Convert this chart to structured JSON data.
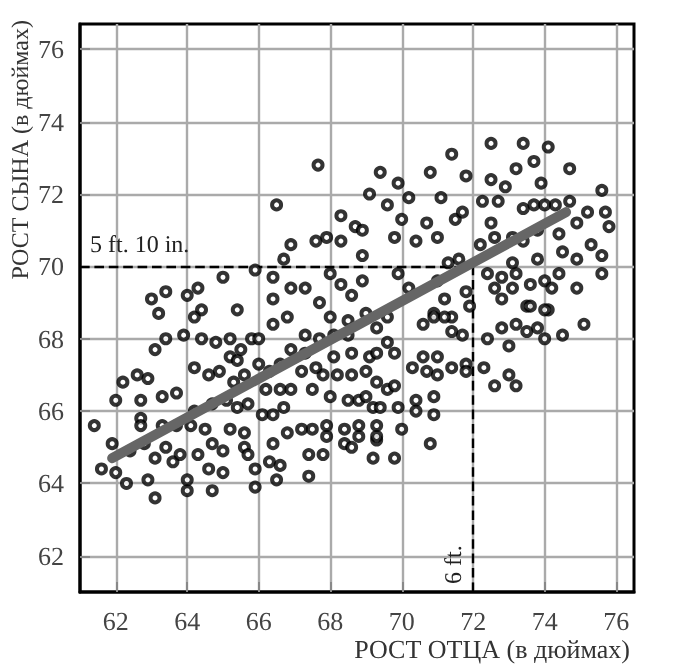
{
  "chart_data": {
    "type": "scatter",
    "xlabel": "РОСТ ОТЦА (в дюймах)",
    "ylabel": "РОСТ СЫНА (в дюймах)",
    "xlim": [
      61,
      76.5
    ],
    "ylim": [
      61,
      76.7
    ],
    "xticks": [
      62,
      64,
      66,
      68,
      70,
      72,
      74,
      76
    ],
    "yticks": [
      62,
      64,
      66,
      68,
      70,
      72,
      74,
      76
    ],
    "grid": true,
    "marker": "circle",
    "ref_lines": [
      {
        "axis": "y",
        "value": 70,
        "label": "5 ft. 10 in.",
        "color": "#000000",
        "line_style": "dashed"
      },
      {
        "axis": "x",
        "value": 72,
        "label": "6 ft.",
        "color": "#000000",
        "line_style": "dashed"
      }
    ],
    "series": [
      {
        "color": "#000000",
        "x": [
          67.66,
          69.1,
          66.5,
          68.3,
          68.7,
          68.9,
          66.9,
          67.6,
          67.9,
          68.3,
          68.9,
          66.7,
          65.0,
          63.0,
          63.4,
          63.2,
          64.0,
          64.3,
          64.4,
          65.9,
          66.4,
          66.4,
          66.9,
          71.4,
          72.5,
          73.4,
          74.1,
          73.7,
          73.2,
          74.7,
          70.8,
          71.8,
          69.4,
          69.9,
          72.5,
          73.9,
          72.9,
          71.1,
          69.6,
          70.2,
          72.26,
          72.7,
          73.4,
          73.7,
          74.0,
          74.3,
          74.7,
          75.6,
          75.7,
          75.8,
          75.2,
          74.9,
          70.7,
          71.5,
          71.7,
          70.0,
          69.8,
          70.4,
          71.0,
          72.5,
          72.6,
          73.1,
          73.4,
          73.8,
          74.4,
          75.3,
          74.9,
          75.6,
          75.6,
          74.5,
          73.8,
          73.1,
          72.4,
          72.8,
          73.2,
          72.6,
          73.1,
          73.6,
          74.0,
          74.2,
          74.4,
          74.9,
          73.5,
          74.1,
          72.8,
          71.8,
          71.2,
          70.9,
          71.4,
          69.9,
          70.2,
          71.0,
          71.6,
          71.3,
          72.2,
          64.2,
          65.4,
          63.1,
          63.4,
          63.9,
          64.4,
          62.2,
          62.6,
          62.9,
          62.0,
          62.7,
          63.3,
          63.7,
          61.4,
          62.7,
          62.7,
          63.3,
          63.7,
          64.2,
          64.1,
          61.9,
          62.4,
          62.8,
          63.4,
          63.1,
          63.6,
          61.6,
          62.0,
          62.3,
          62.9,
          63.1,
          63.8,
          64.3,
          64.0,
          64.0,
          64.6,
          64.7,
          65.0,
          64.5,
          64.7,
          65.0,
          65.1,
          64.7,
          64.2,
          64.6,
          64.9,
          64.8,
          65.2,
          65.5,
          65.8,
          65.2,
          65.4,
          65.3,
          65.6,
          65.4,
          65.7,
          65.2,
          65.6,
          65.6,
          65.7,
          65.9,
          65.9,
          66.3,
          66.6,
          66.5,
          66.4,
          66.8,
          67.2,
          66.1,
          66.4,
          66.7,
          66.2,
          66.6,
          66.9,
          66.0,
          66.3,
          66.6,
          66.9,
          67.3,
          67.3,
          66.0,
          66.4,
          66.8,
          67.4,
          67.4,
          67.8,
          67.5,
          67.9,
          68.4,
          68.0,
          68.5,
          67.9,
          68.4,
          68.8,
          68.8,
          68.6,
          69.2,
          69.3,
          69.3,
          69.2,
          67.5,
          67.8,
          67.2,
          67.6,
          68.2,
          68.6,
          69.0,
          68.1,
          68.6,
          69.1,
          67.7,
          68.1,
          68.5,
          68.0,
          68.5,
          69.0,
          68.8,
          69.0,
          69.3,
          69.6,
          70.6,
          70.9,
          71.2,
          71.7,
          71.4,
          72.4,
          72.8,
          73.2,
          73.5,
          73.8,
          74.0,
          74.5,
          75.1,
          73.0,
          73.6,
          74.0,
          71.9,
          69.3,
          69.6,
          69.8,
          70.6,
          71.0,
          70.3,
          70.7,
          71.0,
          71.4,
          71.8,
          71.8,
          72.3,
          72.6,
          73.0,
          73.2,
          69.3,
          69.6,
          69.8,
          69.4,
          69.9,
          70.4,
          70.4,
          70.9,
          70.9,
          70.0,
          69.3,
          70.8,
          69.8,
          68.3,
          68.6,
          68.9,
          67.7,
          67.3,
          68.0
        ],
        "values": [
          72.8,
          72.0,
          71.7,
          71.4,
          71.1,
          71.0,
          70.6,
          70.7,
          70.8,
          70.7,
          70.3,
          70.2,
          69.7,
          69.1,
          69.3,
          68.7,
          69.2,
          69.4,
          68.8,
          69.9,
          69.7,
          69.1,
          69.4,
          73.1,
          73.4,
          73.4,
          73.3,
          72.9,
          72.7,
          72.7,
          72.6,
          72.5,
          72.6,
          72.3,
          72.4,
          72.3,
          72.2,
          71.9,
          71.7,
          71.9,
          71.8,
          71.8,
          71.6,
          71.7,
          71.7,
          71.7,
          71.8,
          72.1,
          71.5,
          71.1,
          71.5,
          71.2,
          71.2,
          71.3,
          71.5,
          71.3,
          70.8,
          70.7,
          70.8,
          71.2,
          70.8,
          70.8,
          70.7,
          71.0,
          70.9,
          70.6,
          70.2,
          70.3,
          69.8,
          70.4,
          70.2,
          70.1,
          69.8,
          69.7,
          69.8,
          69.4,
          69.4,
          69.5,
          69.6,
          69.4,
          69.8,
          69.4,
          68.9,
          68.8,
          69.1,
          69.3,
          69.1,
          68.7,
          68.6,
          69.8,
          69.4,
          69.6,
          70.2,
          70.1,
          70.6,
          68.6,
          68.8,
          67.7,
          68.0,
          68.1,
          68.0,
          66.8,
          67.0,
          66.9,
          66.3,
          66.3,
          66.4,
          66.5,
          65.6,
          65.8,
          65.6,
          65.6,
          65.6,
          66.0,
          65.6,
          65.1,
          64.9,
          65.1,
          65.0,
          64.7,
          64.6,
          64.4,
          64.3,
          64.0,
          64.1,
          63.6,
          64.8,
          64.8,
          64.1,
          63.8,
          64.4,
          63.8,
          64.3,
          65.5,
          65.1,
          64.9,
          66.3,
          66.2,
          67.2,
          67.0,
          67.1,
          67.9,
          68.0,
          67.7,
          68.0,
          67.5,
          67.4,
          66.8,
          67.0,
          66.1,
          66.2,
          65.5,
          65.4,
          65.0,
          64.8,
          64.4,
          63.9,
          64.6,
          64.5,
          64.1,
          65.1,
          65.4,
          65.5,
          65.9,
          65.9,
          66.1,
          66.6,
          66.6,
          66.6,
          67.3,
          67.1,
          67.3,
          67.7,
          67.6,
          68.1,
          68.0,
          68.4,
          68.6,
          64.2,
          64.8,
          64.8,
          65.5,
          65.6,
          65.5,
          66.4,
          66.3,
          65.3,
          65.1,
          65.6,
          65.3,
          65.0,
          64.7,
          65.2,
          65.6,
          66.1,
          66.6,
          67.0,
          67.1,
          67.2,
          67.0,
          67.0,
          67.1,
          67.5,
          67.6,
          67.5,
          68.0,
          68.1,
          68.1,
          68.6,
          68.5,
          68.7,
          66.3,
          66.4,
          68.3,
          68.6,
          68.4,
          68.6,
          68.6,
          68.1,
          68.2,
          68.0,
          68.3,
          68.4,
          68.2,
          68.3,
          68.0,
          68.1,
          68.4,
          67.8,
          68.9,
          68.8,
          68.9,
          67.6,
          67.9,
          67.6,
          67.5,
          67.5,
          67.2,
          67.1,
          67.0,
          67.2,
          67.3,
          67.1,
          67.2,
          66.7,
          67.0,
          66.7,
          66.8,
          66.6,
          66.7,
          66.1,
          66.1,
          66.3,
          66.0,
          66.4,
          65.9,
          65.5,
          65.3,
          65.1,
          64.7,
          69.5,
          69.2,
          69.6,
          69.0,
          69.4,
          69.8
        ]
      },
      {
        "type": "line",
        "color": "#666666",
        "marker": "none",
        "x": [
          61.9,
          74.6
        ],
        "values": [
          64.7,
          71.5
        ]
      }
    ]
  }
}
